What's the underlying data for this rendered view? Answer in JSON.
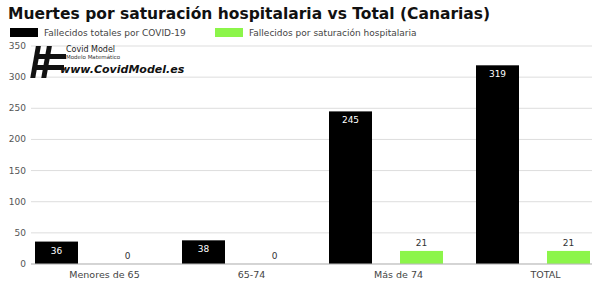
{
  "chart_data": {
    "type": "bar",
    "title": "Muertes por saturación hospitalaria vs Total (Canarias)",
    "annotations": [
      "Covid Model",
      "Modelo Matemático",
      "www.CovidModel.es"
    ],
    "categories": [
      "Menores de 65",
      "65-74",
      "Más de 74",
      "TOTAL"
    ],
    "series": [
      {
        "name": "Fallecidos totales por COVID-19",
        "color": "#000000",
        "values": [
          36,
          38,
          245,
          319
        ]
      },
      {
        "name": "Fallecidos por saturación hospitalaria",
        "color": "#8cf54a",
        "values": [
          0,
          0,
          21,
          21
        ]
      }
    ],
    "ylim": [
      0,
      350
    ],
    "yticks": [
      0,
      50,
      100,
      150,
      200,
      250,
      300,
      350
    ],
    "grid": true,
    "legend": "top-left",
    "data_labels": true
  }
}
